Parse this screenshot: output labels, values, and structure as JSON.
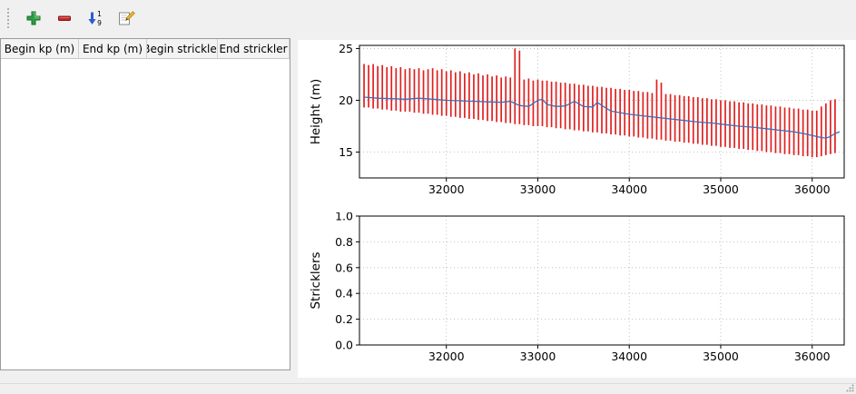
{
  "toolbar": {
    "buttons": [
      {
        "name": "add",
        "icon": "plus-icon"
      },
      {
        "name": "remove",
        "icon": "minus-icon"
      },
      {
        "name": "sort",
        "icon": "sort-numeric-icon"
      },
      {
        "name": "edit",
        "icon": "edit-icon"
      }
    ]
  },
  "table": {
    "columns": [
      "Begin kp (m)",
      "End kp (m)",
      "Begin strickler",
      "End strickler"
    ],
    "rows": []
  },
  "colors": {
    "bar_red": "#e02020",
    "line_blue": "#3f6db5",
    "grid_gray": "#b3b3b3"
  },
  "chart_data": [
    {
      "type": "bar",
      "title": "",
      "xlabel": "",
      "ylabel": "Height (m)",
      "xlim": [
        31050,
        36350
      ],
      "ylim": [
        12.5,
        25.3
      ],
      "xticks": [
        32000,
        33000,
        34000,
        35000,
        36000
      ],
      "xticklabels": [
        "32000",
        "33000",
        "34000",
        "35000",
        "36000"
      ],
      "yticks": [
        15,
        20,
        25
      ],
      "yticklabels": [
        "15",
        "20",
        "25"
      ],
      "grid": true,
      "bar_color": "#e02020",
      "line_color": "#3f6db5",
      "bars": [
        [
          31100,
          19.3,
          23.5
        ],
        [
          31150,
          19.3,
          23.4
        ],
        [
          31200,
          19.2,
          23.5
        ],
        [
          31250,
          19.2,
          23.3
        ],
        [
          31300,
          19.1,
          23.4
        ],
        [
          31350,
          19.1,
          23.2
        ],
        [
          31400,
          19.0,
          23.3
        ],
        [
          31450,
          19.0,
          23.1
        ],
        [
          31500,
          18.9,
          23.2
        ],
        [
          31550,
          18.9,
          23.0
        ],
        [
          31600,
          18.9,
          23.1
        ],
        [
          31650,
          18.8,
          23.0
        ],
        [
          31700,
          18.8,
          23.1
        ],
        [
          31750,
          18.7,
          22.9
        ],
        [
          31800,
          18.7,
          23.0
        ],
        [
          31850,
          18.6,
          23.1
        ],
        [
          31900,
          18.6,
          22.9
        ],
        [
          31950,
          18.5,
          23.0
        ],
        [
          32000,
          18.5,
          22.8
        ],
        [
          32050,
          18.4,
          22.9
        ],
        [
          32100,
          18.4,
          22.7
        ],
        [
          32150,
          18.3,
          22.8
        ],
        [
          32200,
          18.3,
          22.6
        ],
        [
          32250,
          18.2,
          22.7
        ],
        [
          32300,
          18.2,
          22.5
        ],
        [
          32350,
          18.1,
          22.6
        ],
        [
          32400,
          18.1,
          22.4
        ],
        [
          32450,
          18.0,
          22.5
        ],
        [
          32500,
          18.0,
          22.3
        ],
        [
          32550,
          17.9,
          22.4
        ],
        [
          32600,
          17.9,
          22.2
        ],
        [
          32650,
          17.8,
          22.3
        ],
        [
          32700,
          17.8,
          22.2
        ],
        [
          32750,
          17.7,
          25.0
        ],
        [
          32800,
          17.7,
          24.8
        ],
        [
          32850,
          17.6,
          22.0
        ],
        [
          32900,
          17.6,
          22.1
        ],
        [
          32950,
          17.5,
          21.9
        ],
        [
          33000,
          17.5,
          22.0
        ],
        [
          33050,
          17.5,
          21.9
        ],
        [
          33100,
          17.4,
          21.9
        ],
        [
          33150,
          17.4,
          21.8
        ],
        [
          33200,
          17.3,
          21.8
        ],
        [
          33250,
          17.3,
          21.7
        ],
        [
          33300,
          17.2,
          21.7
        ],
        [
          33350,
          17.2,
          21.6
        ],
        [
          33400,
          17.1,
          21.6
        ],
        [
          33450,
          17.1,
          21.5
        ],
        [
          33500,
          17.0,
          21.5
        ],
        [
          33550,
          17.0,
          21.4
        ],
        [
          33600,
          16.9,
          21.4
        ],
        [
          33650,
          16.9,
          21.3
        ],
        [
          33700,
          16.8,
          21.3
        ],
        [
          33750,
          16.8,
          21.2
        ],
        [
          33800,
          16.7,
          21.2
        ],
        [
          33850,
          16.7,
          21.1
        ],
        [
          33900,
          16.6,
          21.1
        ],
        [
          33950,
          16.6,
          21.0
        ],
        [
          34000,
          16.5,
          21.0
        ],
        [
          34050,
          16.5,
          20.9
        ],
        [
          34100,
          16.4,
          20.9
        ],
        [
          34150,
          16.4,
          20.8
        ],
        [
          34200,
          16.3,
          20.8
        ],
        [
          34250,
          16.3,
          20.7
        ],
        [
          34300,
          16.2,
          22.0
        ],
        [
          34350,
          16.2,
          21.7
        ],
        [
          34400,
          16.1,
          20.6
        ],
        [
          34450,
          16.1,
          20.6
        ],
        [
          34500,
          16.0,
          20.5
        ],
        [
          34550,
          16.0,
          20.5
        ],
        [
          34600,
          15.9,
          20.4
        ],
        [
          34650,
          15.9,
          20.4
        ],
        [
          34700,
          15.8,
          20.3
        ],
        [
          34750,
          15.8,
          20.3
        ],
        [
          34800,
          15.7,
          20.2
        ],
        [
          34850,
          15.7,
          20.2
        ],
        [
          34900,
          15.6,
          20.1
        ],
        [
          34950,
          15.6,
          20.1
        ],
        [
          35000,
          15.5,
          20.0
        ],
        [
          35050,
          15.5,
          20.0
        ],
        [
          35100,
          15.4,
          19.9
        ],
        [
          35150,
          15.4,
          19.9
        ],
        [
          35200,
          15.3,
          19.8
        ],
        [
          35250,
          15.3,
          19.8
        ],
        [
          35300,
          15.2,
          19.7
        ],
        [
          35350,
          15.2,
          19.7
        ],
        [
          35400,
          15.1,
          19.6
        ],
        [
          35450,
          15.1,
          19.6
        ],
        [
          35500,
          15.0,
          19.5
        ],
        [
          35550,
          15.0,
          19.5
        ],
        [
          35600,
          14.9,
          19.4
        ],
        [
          35650,
          14.9,
          19.4
        ],
        [
          35700,
          14.8,
          19.3
        ],
        [
          35750,
          14.8,
          19.3
        ],
        [
          35800,
          14.7,
          19.2
        ],
        [
          35850,
          14.7,
          19.2
        ],
        [
          35900,
          14.6,
          19.1
        ],
        [
          35950,
          14.6,
          19.1
        ],
        [
          36000,
          14.5,
          19.0
        ],
        [
          36050,
          14.5,
          19.0
        ],
        [
          36100,
          14.6,
          19.4
        ],
        [
          36150,
          14.7,
          19.7
        ],
        [
          36200,
          14.8,
          20.0
        ],
        [
          36250,
          14.9,
          20.1
        ]
      ],
      "line": [
        [
          31100,
          20.3
        ],
        [
          31250,
          20.2
        ],
        [
          31400,
          20.15
        ],
        [
          31550,
          20.1
        ],
        [
          31700,
          20.2
        ],
        [
          31850,
          20.1
        ],
        [
          32000,
          20.0
        ],
        [
          32150,
          19.95
        ],
        [
          32300,
          19.9
        ],
        [
          32450,
          19.85
        ],
        [
          32600,
          19.8
        ],
        [
          32700,
          19.9
        ],
        [
          32800,
          19.5
        ],
        [
          32900,
          19.4
        ],
        [
          33000,
          20.0
        ],
        [
          33050,
          20.1
        ],
        [
          33100,
          19.6
        ],
        [
          33200,
          19.4
        ],
        [
          33300,
          19.45
        ],
        [
          33400,
          19.9
        ],
        [
          33500,
          19.4
        ],
        [
          33600,
          19.35
        ],
        [
          33650,
          19.8
        ],
        [
          33700,
          19.5
        ],
        [
          33800,
          18.95
        ],
        [
          33900,
          18.8
        ],
        [
          34000,
          18.65
        ],
        [
          34150,
          18.5
        ],
        [
          34300,
          18.35
        ],
        [
          34450,
          18.2
        ],
        [
          34600,
          18.05
        ],
        [
          34750,
          17.9
        ],
        [
          34900,
          17.8
        ],
        [
          35050,
          17.65
        ],
        [
          35200,
          17.5
        ],
        [
          35350,
          17.4
        ],
        [
          35500,
          17.25
        ],
        [
          35650,
          17.1
        ],
        [
          35800,
          16.95
        ],
        [
          35900,
          16.8
        ],
        [
          36000,
          16.6
        ],
        [
          36100,
          16.4
        ],
        [
          36150,
          16.35
        ],
        [
          36200,
          16.5
        ],
        [
          36250,
          16.8
        ],
        [
          36300,
          16.95
        ]
      ]
    },
    {
      "type": "bar",
      "title": "",
      "xlabel": "",
      "ylabel": "Stricklers",
      "xlim": [
        31050,
        36350
      ],
      "ylim": [
        0.0,
        1.0
      ],
      "xticks": [
        32000,
        33000,
        34000,
        35000,
        36000
      ],
      "xticklabels": [
        "32000",
        "33000",
        "34000",
        "35000",
        "36000"
      ],
      "yticks": [
        0.0,
        0.2,
        0.4,
        0.6,
        0.8,
        1.0
      ],
      "yticklabels": [
        "0.0",
        "0.2",
        "0.4",
        "0.6",
        "0.8",
        "1.0"
      ],
      "grid": true,
      "bars": [],
      "line": []
    }
  ]
}
